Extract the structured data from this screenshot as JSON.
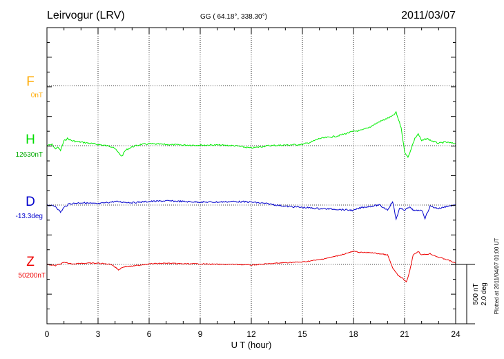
{
  "header": {
    "station": "Leirvogur (LRV)",
    "coords": "GG ( 64.18°, 338.30°)",
    "date": "2011/03/07"
  },
  "side_note": "Plotted at 2011/04/07 01:00 UT",
  "scale": {
    "nt": "500 nT",
    "deg": "2.0 deg"
  },
  "colors": {
    "F": "#ffaa00",
    "H": "#00ee00",
    "D": "#0000cc",
    "Z": "#ee0000"
  },
  "chart_data": {
    "type": "line",
    "title": "Leirvogur (LRV)",
    "xlabel": "U T (hour)",
    "ylabel": "",
    "xlim": [
      0,
      24
    ],
    "x_ticks": [
      "0",
      "3",
      "6",
      "9",
      "12",
      "15",
      "18",
      "21",
      "24"
    ],
    "grid": true,
    "series": [
      {
        "name": "F",
        "baseline": "0nT",
        "values": []
      },
      {
        "name": "H",
        "baseline": "12630nT",
        "x": [
          0,
          0.3,
          0.5,
          0.6,
          0.8,
          1,
          1.2,
          1.5,
          2,
          2.5,
          3,
          3.5,
          3.9,
          4.2,
          4.4,
          4.6,
          5,
          5.5,
          6,
          7,
          8,
          9,
          10,
          11,
          12,
          12.5,
          13,
          14,
          15,
          15.5,
          16,
          17,
          18,
          18.5,
          19,
          19.5,
          20,
          20.3,
          20.5,
          20.8,
          21,
          21.2,
          21.4,
          21.6,
          21.8,
          22,
          22.3,
          22.6,
          23,
          23.4,
          23.8,
          24
        ],
        "values": [
          0,
          10,
          -30,
          -10,
          -40,
          40,
          60,
          40,
          30,
          20,
          10,
          0,
          -10,
          -60,
          -90,
          -40,
          -10,
          10,
          15,
          10,
          5,
          5,
          5,
          0,
          -20,
          -10,
          0,
          5,
          10,
          30,
          60,
          80,
          120,
          130,
          160,
          200,
          230,
          250,
          280,
          150,
          -50,
          -100,
          -20,
          60,
          100,
          40,
          60,
          40,
          20,
          30,
          20,
          20
        ]
      },
      {
        "name": "D",
        "baseline": "-13.3deg",
        "x": [
          0,
          0.5,
          0.8,
          1,
          1.3,
          2,
          3,
          4,
          5,
          6,
          7,
          8,
          9,
          10,
          11,
          12,
          13,
          14,
          15,
          16,
          17,
          18,
          18.5,
          19,
          19.5,
          20,
          20.3,
          20.5,
          20.7,
          21,
          21.3,
          21.6,
          22,
          22.2,
          22.5,
          23,
          23.5,
          24
        ],
        "values": [
          0,
          -10,
          -60,
          -20,
          10,
          20,
          10,
          30,
          20,
          30,
          35,
          30,
          25,
          25,
          30,
          25,
          10,
          -10,
          -20,
          -30,
          -35,
          -45,
          -20,
          -10,
          0,
          -40,
          30,
          -120,
          -30,
          -40,
          -20,
          -50,
          -40,
          -110,
          -10,
          -30,
          -10,
          0
        ]
      },
      {
        "name": "Z",
        "baseline": "50200nT",
        "x": [
          0,
          0.5,
          1,
          1.5,
          2,
          3,
          3.8,
          4.2,
          4.5,
          5,
          6,
          7,
          8,
          9,
          10,
          11,
          12,
          13,
          14,
          15,
          16,
          17,
          17.5,
          18,
          18.5,
          19,
          19.5,
          20,
          20.3,
          20.6,
          20.9,
          21.1,
          21.3,
          21.5,
          21.8,
          22,
          22.5,
          23,
          23.5,
          24
        ],
        "values": [
          0,
          -10,
          15,
          5,
          10,
          10,
          0,
          -45,
          -20,
          -15,
          5,
          10,
          5,
          5,
          0,
          0,
          -5,
          5,
          15,
          20,
          40,
          70,
          90,
          110,
          100,
          100,
          90,
          80,
          -30,
          -90,
          -120,
          -150,
          -60,
          80,
          110,
          80,
          90,
          60,
          40,
          10
        ]
      }
    ]
  }
}
